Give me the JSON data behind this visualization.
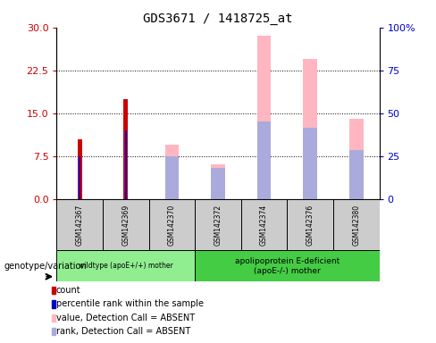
{
  "title": "GDS3671 / 1418725_at",
  "samples": [
    "GSM142367",
    "GSM142369",
    "GSM142370",
    "GSM142372",
    "GSM142374",
    "GSM142376",
    "GSM142380"
  ],
  "count_values": [
    10.5,
    17.5,
    0,
    0,
    0,
    0,
    0
  ],
  "percentile_values": [
    7.5,
    12.0,
    0,
    0,
    0,
    0,
    0
  ],
  "absent_value_values": [
    0,
    0,
    9.5,
    6.0,
    28.5,
    24.5,
    14.0
  ],
  "absent_rank_values": [
    0,
    0,
    7.5,
    5.5,
    13.5,
    12.5,
    8.5
  ],
  "left_yticks": [
    0,
    7.5,
    15,
    22.5,
    30
  ],
  "right_yticks": [
    0,
    25,
    50,
    75,
    100
  ],
  "right_yticklabels": [
    "0",
    "25",
    "50",
    "75",
    "100%"
  ],
  "count_color": "#CC0000",
  "percentile_color": "#0000CC",
  "absent_value_color": "#FFB6C1",
  "absent_rank_color": "#AAAADD",
  "bg_color": "#FFFFFF",
  "group1_label": "wildtype (apoE+/+) mother",
  "group2_label": "apolipoprotein E-deficient\n(apoE-/-) mother",
  "group1_color": "#90EE90",
  "group2_color": "#44CC44",
  "legend_items": [
    {
      "color": "#CC0000",
      "label": "count"
    },
    {
      "color": "#0000CC",
      "label": "percentile rank within the sample"
    },
    {
      "color": "#FFB6C1",
      "label": "value, Detection Call = ABSENT"
    },
    {
      "color": "#AAAADD",
      "label": "rank, Detection Call = ABSENT"
    }
  ]
}
